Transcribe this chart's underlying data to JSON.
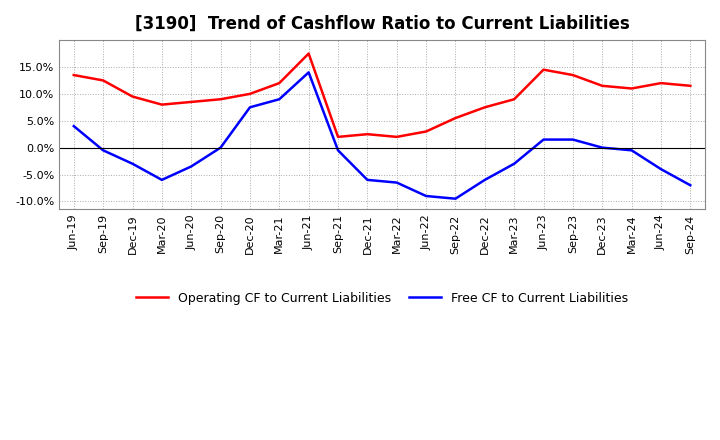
{
  "title": "[3190]  Trend of Cashflow Ratio to Current Liabilities",
  "x_labels": [
    "Jun-19",
    "Sep-19",
    "Dec-19",
    "Mar-20",
    "Jun-20",
    "Sep-20",
    "Dec-20",
    "Mar-21",
    "Jun-21",
    "Sep-21",
    "Dec-21",
    "Mar-22",
    "Jun-22",
    "Sep-22",
    "Dec-22",
    "Mar-23",
    "Jun-23",
    "Sep-23",
    "Dec-23",
    "Mar-24",
    "Jun-24",
    "Sep-24"
  ],
  "operating_cf": [
    0.135,
    0.125,
    0.095,
    0.08,
    0.085,
    0.09,
    0.1,
    0.12,
    0.175,
    0.02,
    0.025,
    0.02,
    0.03,
    0.055,
    0.075,
    0.09,
    0.145,
    0.135,
    0.115,
    0.11,
    0.12,
    0.115
  ],
  "free_cf": [
    0.04,
    -0.005,
    -0.03,
    -0.06,
    -0.035,
    0.0,
    0.075,
    0.09,
    0.14,
    -0.005,
    -0.06,
    -0.065,
    -0.09,
    -0.095,
    -0.06,
    -0.03,
    0.015,
    0.015,
    0.0,
    -0.005,
    -0.04,
    -0.07
  ],
  "operating_color": "#FF0000",
  "free_color": "#0000FF",
  "ylim": [
    -0.115,
    0.2
  ],
  "yticks": [
    -0.1,
    -0.05,
    0.0,
    0.05,
    0.1,
    0.15
  ],
  "background_color": "#FFFFFF",
  "grid_color": "#AAAAAA",
  "legend_operating": "Operating CF to Current Liabilities",
  "legend_free": "Free CF to Current Liabilities",
  "title_fontsize": 12,
  "tick_fontsize": 8,
  "legend_fontsize": 9
}
